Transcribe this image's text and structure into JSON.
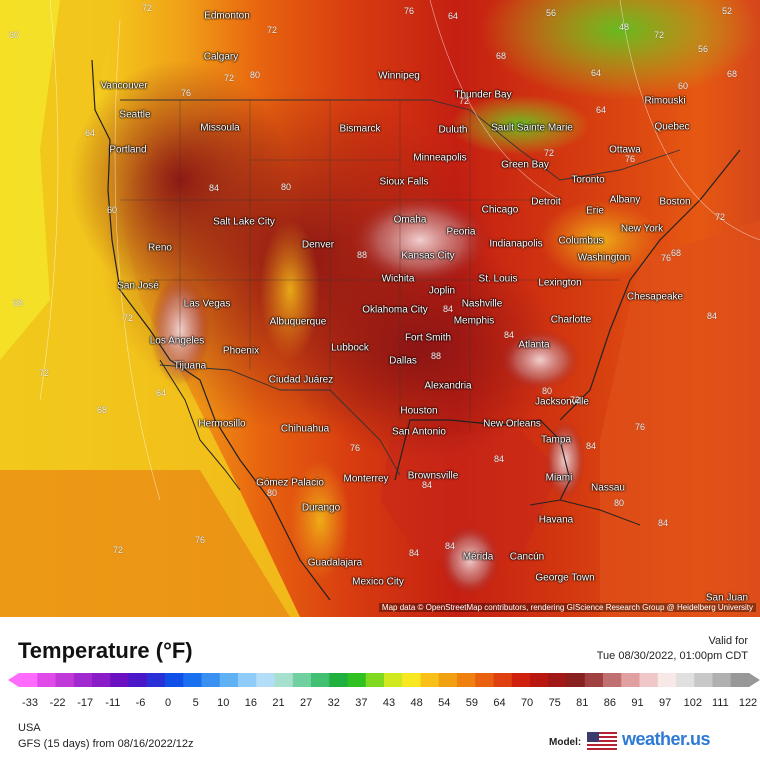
{
  "map": {
    "attribution": "Map data © OpenStreetMap contributors, rendering GIScience Research Group @ Heidelberg University",
    "cities": [
      {
        "name": "Edmonton"
      },
      {
        "name": "Calgary"
      },
      {
        "name": "Winnipeg"
      },
      {
        "name": "Vancouver"
      },
      {
        "name": "Thunder Bay"
      },
      {
        "name": "Seattle"
      },
      {
        "name": "Missoula"
      },
      {
        "name": "Bismarck"
      },
      {
        "name": "Duluth"
      },
      {
        "name": "Sault Sainte Marie"
      },
      {
        "name": "Rimouski"
      },
      {
        "name": "Quebec"
      },
      {
        "name": "Portland"
      },
      {
        "name": "Minneapolis"
      },
      {
        "name": "Green Bay"
      },
      {
        "name": "Ottawa"
      },
      {
        "name": "Sioux Falls"
      },
      {
        "name": "Toronto"
      },
      {
        "name": "Detroit"
      },
      {
        "name": "Chicago"
      },
      {
        "name": "Erie"
      },
      {
        "name": "Albany"
      },
      {
        "name": "Boston"
      },
      {
        "name": "Salt Lake City"
      },
      {
        "name": "Omaha"
      },
      {
        "name": "Peoria"
      },
      {
        "name": "New York"
      },
      {
        "name": "Reno"
      },
      {
        "name": "Denver"
      },
      {
        "name": "Indianapolis"
      },
      {
        "name": "Columbus"
      },
      {
        "name": "Kansas City"
      },
      {
        "name": "Washington"
      },
      {
        "name": "Wichita"
      },
      {
        "name": "St. Louis"
      },
      {
        "name": "San José"
      },
      {
        "name": "Joplin"
      },
      {
        "name": "Lexington"
      },
      {
        "name": "Chesapeake"
      },
      {
        "name": "Las Vegas"
      },
      {
        "name": "Nashville"
      },
      {
        "name": "Oklahoma City"
      },
      {
        "name": "Albuquerque"
      },
      {
        "name": "Charlotte"
      },
      {
        "name": "Memphis"
      },
      {
        "name": "Los Angeles"
      },
      {
        "name": "Fort Smith"
      },
      {
        "name": "Phoenix"
      },
      {
        "name": "Lubbock"
      },
      {
        "name": "Atlanta"
      },
      {
        "name": "Dallas"
      },
      {
        "name": "Tijuana"
      },
      {
        "name": "Ciudad Juárez"
      },
      {
        "name": "Alexandria"
      },
      {
        "name": "Jacksonville"
      },
      {
        "name": "Houston"
      },
      {
        "name": "Hermosillo"
      },
      {
        "name": "San Antonio"
      },
      {
        "name": "New Orleans"
      },
      {
        "name": "Chihuahua"
      },
      {
        "name": "Tampa"
      },
      {
        "name": "Brownsville"
      },
      {
        "name": "Monterrey"
      },
      {
        "name": "Gómez Palacio"
      },
      {
        "name": "Miami"
      },
      {
        "name": "Nassau"
      },
      {
        "name": "Durango"
      },
      {
        "name": "Havana"
      },
      {
        "name": "Mérida"
      },
      {
        "name": "Cancún"
      },
      {
        "name": "Guadalajara"
      },
      {
        "name": "George Town"
      },
      {
        "name": "Mexico City"
      },
      {
        "name": "San Juan"
      }
    ],
    "isotherm_labels": [
      "60",
      "72",
      "72",
      "76",
      "64",
      "56",
      "52",
      "48",
      "56",
      "60",
      "80",
      "72",
      "64",
      "72",
      "76",
      "68",
      "64",
      "80",
      "60",
      "72",
      "68",
      "68",
      "64",
      "72",
      "72",
      "76",
      "84",
      "88",
      "84",
      "72",
      "84",
      "84",
      "80",
      "84",
      "84",
      "76",
      "68",
      "72",
      "64",
      "72",
      "68",
      "76",
      "80",
      "72",
      "76",
      "84",
      "84",
      "84",
      "76",
      "80",
      "84",
      "88"
    ]
  },
  "legend": {
    "title": "Temperature (°F)",
    "valid_label": "Valid for",
    "valid_time": "Tue 08/30/2022, 01:00pm CDT",
    "ticks": [
      "-33",
      "-22",
      "-17",
      "-11",
      "-6",
      "0",
      "5",
      "10",
      "16",
      "21",
      "27",
      "32",
      "37",
      "43",
      "48",
      "54",
      "59",
      "64",
      "70",
      "75",
      "81",
      "86",
      "91",
      "97",
      "102",
      "111",
      "122"
    ],
    "colors": [
      "#ff6bff",
      "#e04ae8",
      "#c03ad8",
      "#a02ad0",
      "#8a1cc8",
      "#6a10c0",
      "#4a18c8",
      "#2a30d8",
      "#1050e8",
      "#1a70f0",
      "#3a90f0",
      "#60b0f4",
      "#90ccf8",
      "#b4def8",
      "#a8e0d0",
      "#70d0a0",
      "#40c070",
      "#20b040",
      "#30c020",
      "#80d820",
      "#d0e820",
      "#f8e820",
      "#f8c018",
      "#f0a010",
      "#f08010",
      "#e86010",
      "#e04010",
      "#d02010",
      "#b81810",
      "#a01818",
      "#882020",
      "#a04040",
      "#c07070",
      "#e0a0a0",
      "#f0c8c8",
      "#f8e8e8",
      "#e0e0e0",
      "#c8c8c8",
      "#b0b0b0",
      "#989898"
    ]
  },
  "footer": {
    "region": "USA",
    "run": "GFS (15 days) from 08/16/2022/12z",
    "model_label": "Model:",
    "brand": "weather.us"
  }
}
